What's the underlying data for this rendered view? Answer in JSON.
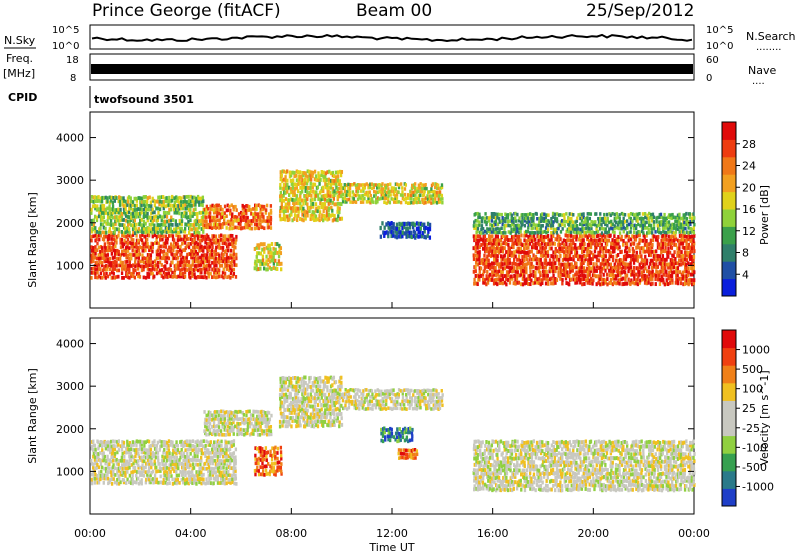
{
  "header": {
    "station": "Prince George (fitACF)",
    "beam": "Beam 00",
    "date": "25/Sep/2012"
  },
  "top_panels": {
    "nsky_label": "N.Sky",
    "nsky_ticks": [
      "10^5",
      "10^0"
    ],
    "nsky_right_ticks": [
      "10^5",
      "10^0"
    ],
    "nsearch_label": "N.Search",
    "nsearch_dots": "........",
    "freq_label_line1": "Freq.",
    "freq_label_line2": "[MHz]",
    "freq_ticks": [
      "18",
      "8"
    ],
    "nave_ticks": [
      "60",
      "0"
    ],
    "nave_label": "Nave",
    "nave_dots": "....",
    "cpid_label": "CPID",
    "cpid_value": "twofsound 3501"
  },
  "x_axis": {
    "label": "Time UT",
    "ticks": [
      "00:00",
      "04:00",
      "08:00",
      "12:00",
      "16:00",
      "20:00",
      "00:00"
    ]
  },
  "colors": {
    "power_scale": [
      "#0a1fdc",
      "#1f4fa5",
      "#2f7f6a",
      "#3aa04a",
      "#8fd23a",
      "#e0d21a",
      "#f2a020",
      "#f07818",
      "#ee3c10",
      "#e00a0a"
    ],
    "velocity_scale": [
      "#1f3fc8",
      "#2a7a8a",
      "#36a050",
      "#90d040",
      "#c8c8c0",
      "#c8c8c0",
      "#f0c020",
      "#f08018",
      "#f04010",
      "#e00a0a"
    ]
  },
  "chart_data": [
    {
      "type": "heatmap",
      "name": "power",
      "ylabel": "Slant Range [km]",
      "xlabel": "",
      "x_range_hours": [
        0,
        24
      ],
      "ylim": [
        0,
        4600
      ],
      "y_ticks": [
        1000,
        2000,
        3000,
        4000
      ],
      "colorbar_label": "Power [dB]",
      "colorbar_ticks": [
        "4",
        "8",
        "12",
        "16",
        "20",
        "24",
        "28"
      ],
      "bands": [
        {
          "t0": 0.0,
          "t1": 5.8,
          "r0": 750,
          "r1": 1800,
          "level": 0.85
        },
        {
          "t0": 0.0,
          "t1": 4.5,
          "r0": 1800,
          "r1": 2700,
          "level": 0.45
        },
        {
          "t0": 4.5,
          "t1": 7.2,
          "r0": 1900,
          "r1": 2500,
          "level": 0.75
        },
        {
          "t0": 6.5,
          "t1": 7.6,
          "r0": 950,
          "r1": 1600,
          "level": 0.55
        },
        {
          "t0": 7.5,
          "t1": 10.0,
          "r0": 2100,
          "r1": 3300,
          "level": 0.55
        },
        {
          "t0": 10.0,
          "t1": 14.0,
          "r0": 2500,
          "r1": 3000,
          "level": 0.55
        },
        {
          "t0": 11.5,
          "t1": 13.5,
          "r0": 1700,
          "r1": 2100,
          "level": 0.15
        },
        {
          "t0": 15.2,
          "t1": 24.0,
          "r0": 600,
          "r1": 1800,
          "level": 0.85
        },
        {
          "t0": 15.2,
          "t1": 24.0,
          "r0": 1800,
          "r1": 2300,
          "level": 0.35
        }
      ]
    },
    {
      "type": "heatmap",
      "name": "velocity",
      "ylabel": "Slant Range [km]",
      "xlabel": "Time UT",
      "x_range_hours": [
        0,
        24
      ],
      "ylim": [
        0,
        4600
      ],
      "y_ticks": [
        1000,
        2000,
        3000,
        4000
      ],
      "colorbar_label": "Velocity [m s^-1]",
      "colorbar_ticks": [
        "-1000",
        "-500",
        "-100",
        "-25",
        "25",
        "100",
        "500",
        "1000"
      ],
      "bands": [
        {
          "t0": 0.0,
          "t1": 5.8,
          "r0": 750,
          "r1": 1800,
          "level": 0.5
        },
        {
          "t0": 4.5,
          "t1": 7.2,
          "r0": 1900,
          "r1": 2500,
          "level": 0.5
        },
        {
          "t0": 6.5,
          "t1": 7.6,
          "r0": 950,
          "r1": 1650,
          "level": 0.8
        },
        {
          "t0": 7.5,
          "t1": 10.0,
          "r0": 2100,
          "r1": 3300,
          "level": 0.5
        },
        {
          "t0": 10.0,
          "t1": 14.0,
          "r0": 2500,
          "r1": 3000,
          "level": 0.5
        },
        {
          "t0": 11.5,
          "t1": 12.8,
          "r0": 1750,
          "r1": 2100,
          "level": 0.2
        },
        {
          "t0": 12.2,
          "t1": 13.0,
          "r0": 1350,
          "r1": 1600,
          "level": 0.8
        },
        {
          "t0": 15.2,
          "t1": 24.0,
          "r0": 600,
          "r1": 1800,
          "level": 0.5
        }
      ]
    }
  ]
}
